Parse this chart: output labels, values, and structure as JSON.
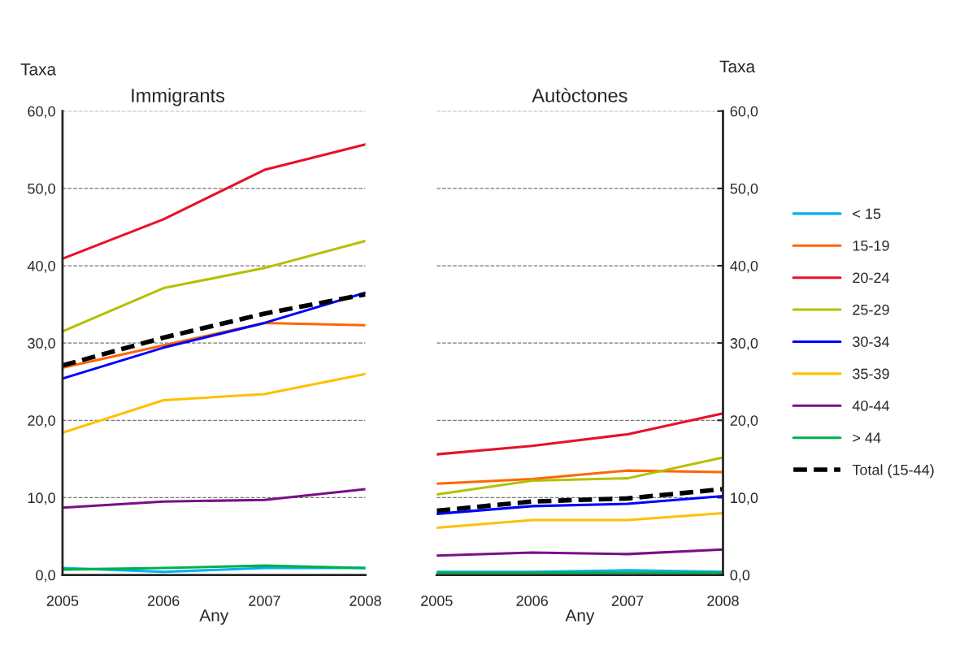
{
  "chart_data": [
    {
      "type": "line",
      "title": "Immigrants",
      "xlabel": "Any",
      "ylabel": "Taxa",
      "categories": [
        "2005",
        "2006",
        "2007",
        "2008"
      ],
      "ylim": [
        0,
        60
      ],
      "yticks": [
        {
          "value": 0,
          "label": "0,0"
        },
        {
          "value": 10,
          "label": "10,0"
        },
        {
          "value": 20,
          "label": "20,0"
        },
        {
          "value": 30,
          "label": "30,0"
        },
        {
          "value": 40,
          "label": "40,0"
        },
        {
          "value": 50,
          "label": "50,0"
        },
        {
          "value": 60,
          "label": "60,0"
        }
      ],
      "grid": "y",
      "legend": false,
      "marker": "none",
      "series": [
        {
          "color": "#00b0f0",
          "values": [
            0.9,
            0.4,
            0.9,
            0.9
          ]
        },
        {
          "color": "#ff6600",
          "values": [
            26.8,
            29.7,
            32.6,
            32.3
          ]
        },
        {
          "color": "#e8102a",
          "values": [
            40.9,
            46.0,
            52.4,
            55.7
          ]
        },
        {
          "color": "#b5c000",
          "values": [
            31.5,
            37.1,
            39.7,
            43.2
          ]
        },
        {
          "color": "#0000ff",
          "values": [
            25.4,
            29.4,
            32.6,
            36.5
          ]
        },
        {
          "color": "#ffc000",
          "values": [
            18.4,
            22.6,
            23.4,
            26.0
          ]
        },
        {
          "color": "#7b0e8a",
          "values": [
            8.7,
            9.5,
            9.7,
            11.1
          ]
        },
        {
          "color": "#00b050",
          "values": [
            0.7,
            0.9,
            1.2,
            0.9
          ]
        },
        {
          "color": "#000000",
          "values": [
            27.1,
            30.7,
            33.8,
            36.3
          ],
          "line_style": "dashed"
        }
      ]
    },
    {
      "type": "line",
      "title": "Autòctones",
      "xlabel": "Any",
      "ylabel": "Taxa",
      "categories": [
        "2005",
        "2006",
        "2007",
        "2008"
      ],
      "ylim": [
        0,
        60
      ],
      "yticks": [
        {
          "value": 0,
          "label": "0,0"
        },
        {
          "value": 10,
          "label": "10,0"
        },
        {
          "value": 20,
          "label": "20,0"
        },
        {
          "value": 30,
          "label": "30,0"
        },
        {
          "value": 40,
          "label": "40,0"
        },
        {
          "value": 50,
          "label": "50,0"
        },
        {
          "value": 60,
          "label": "60,0"
        }
      ],
      "grid": "y",
      "legend": "right",
      "marker": "none",
      "series": [
        {
          "name": "< 15",
          "color": "#00b0f0",
          "values": [
            0.4,
            0.4,
            0.6,
            0.4
          ]
        },
        {
          "name": "15-19",
          "color": "#ff6600",
          "values": [
            11.8,
            12.4,
            13.5,
            13.3
          ]
        },
        {
          "name": "20-24",
          "color": "#e8102a",
          "values": [
            15.6,
            16.7,
            18.2,
            20.9
          ]
        },
        {
          "name": "25-29",
          "color": "#b5c000",
          "values": [
            10.4,
            12.2,
            12.5,
            15.2
          ]
        },
        {
          "name": "30-34",
          "color": "#0000ff",
          "values": [
            7.9,
            8.9,
            9.2,
            10.2
          ]
        },
        {
          "name": "35-39",
          "color": "#ffc000",
          "values": [
            6.1,
            7.1,
            7.1,
            8.0
          ]
        },
        {
          "name": "40-44",
          "color": "#7b0e8a",
          "values": [
            2.5,
            2.9,
            2.7,
            3.3
          ]
        },
        {
          "name": "> 44",
          "color": "#00b050",
          "values": [
            0.3,
            0.3,
            0.3,
            0.3
          ]
        },
        {
          "name": "Total (15-44)",
          "color": "#000000",
          "values": [
            8.3,
            9.5,
            9.9,
            11.1
          ],
          "line_style": "dashed"
        }
      ]
    }
  ]
}
